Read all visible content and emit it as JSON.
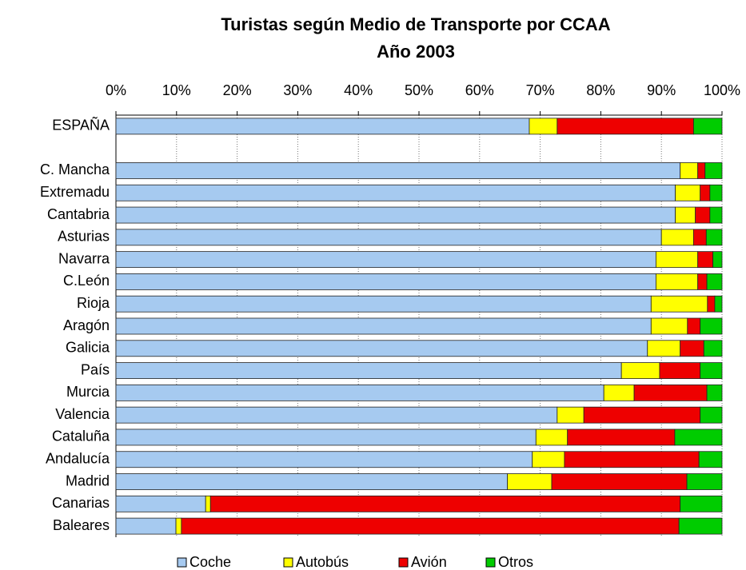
{
  "chart_data": {
    "type": "stacked-barh",
    "title": "Turistas según Medio de Transporte por CCAA",
    "subtitle": "Año 2003",
    "categories": [
      "ESPAÑA",
      null,
      "C. Mancha",
      "Extremadu",
      "Cantabria",
      "Asturias",
      "Navarra",
      "C.León",
      "Rioja",
      "Aragón",
      "Galicia",
      "País",
      "Murcia",
      "Valencia",
      "Cataluña",
      "Andalucía",
      "Madrid",
      "Canarias",
      "Baleares"
    ],
    "series": [
      {
        "name": "Coche",
        "color": "#a6caf0",
        "values": [
          68.2,
          null,
          93.1,
          92.3,
          92.3,
          90.0,
          89.1,
          89.1,
          88.3,
          88.3,
          87.7,
          83.4,
          80.5,
          72.8,
          69.3,
          68.7,
          64.6,
          14.8,
          9.9
        ]
      },
      {
        "name": "Autobús",
        "color": "#ffff00",
        "values": [
          4.6,
          null,
          2.9,
          4.1,
          3.3,
          5.3,
          6.9,
          6.9,
          9.3,
          6.0,
          5.4,
          6.3,
          5.0,
          4.4,
          5.2,
          5.3,
          7.3,
          0.8,
          0.9
        ]
      },
      {
        "name": "Avión",
        "color": "#ee0000",
        "values": [
          22.5,
          null,
          1.2,
          1.6,
          2.4,
          2.1,
          2.5,
          1.5,
          1.2,
          2.1,
          3.9,
          6.7,
          12.0,
          19.2,
          17.7,
          22.2,
          22.3,
          77.5,
          82.1
        ]
      },
      {
        "name": "Otros",
        "color": "#00cc00",
        "values": [
          4.7,
          null,
          2.8,
          2.0,
          2.0,
          2.6,
          1.5,
          2.5,
          1.2,
          3.6,
          3.0,
          3.6,
          2.5,
          3.6,
          7.8,
          3.8,
          5.8,
          6.9,
          7.1
        ]
      }
    ],
    "xlim": [
      0,
      100
    ],
    "xticks": [
      {
        "value": 0,
        "label": "0%"
      },
      {
        "value": 10,
        "label": "10%"
      },
      {
        "value": 20,
        "label": "20%"
      },
      {
        "value": 30,
        "label": "30%"
      },
      {
        "value": 40,
        "label": "40%"
      },
      {
        "value": 50,
        "label": "50%"
      },
      {
        "value": 60,
        "label": "60%"
      },
      {
        "value": 70,
        "label": "70%"
      },
      {
        "value": 80,
        "label": "80%"
      },
      {
        "value": 90,
        "label": "90%"
      },
      {
        "value": 100,
        "label": "100%"
      }
    ],
    "grid": true,
    "legend": "bottom"
  }
}
